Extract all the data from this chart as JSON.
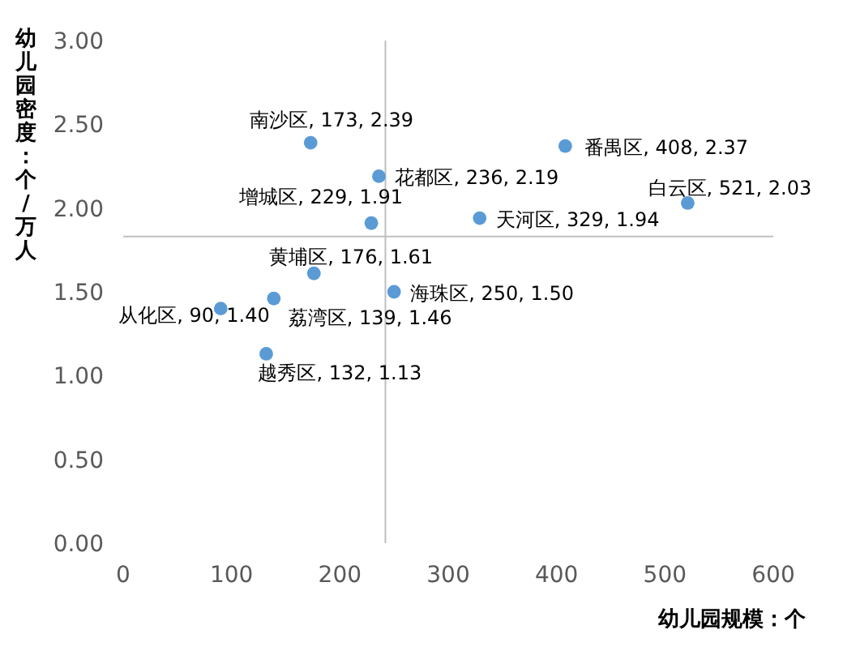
{
  "chart_data": {
    "type": "scatter",
    "xlabel": "幼儿园规模：个",
    "ylabel": "幼儿园密度：个/万人",
    "xlim": [
      0,
      600
    ],
    "xticks": [
      0,
      100,
      200,
      300,
      400,
      500,
      600
    ],
    "ylim": [
      0,
      3
    ],
    "yticks": [
      {
        "value": 0,
        "label": "0.00"
      },
      {
        "value": 0.5,
        "label": "0.50"
      },
      {
        "value": 1,
        "label": "1.00"
      },
      {
        "value": 1.5,
        "label": "1.50"
      },
      {
        "value": 2,
        "label": "2.00"
      },
      {
        "value": 2.5,
        "label": "2.50"
      },
      {
        "value": 3,
        "label": "3.00"
      }
    ],
    "grid": false,
    "marker": "circle",
    "series": [
      {
        "color": "#5b9bd5",
        "x": [
          173,
          408,
          236,
          521,
          229,
          329,
          176,
          250,
          139,
          90,
          132
        ],
        "values": [
          2.39,
          2.37,
          2.19,
          2.03,
          1.91,
          1.94,
          1.61,
          1.5,
          1.46,
          1.4,
          1.13
        ],
        "value_labels": [
          "南沙区, 173, 2.39",
          "番禺区, 408, 2.37",
          "花都区, 236, 2.19",
          "白云区, 521, 2.03",
          "增城区, 229, 1.91",
          "天河区, 329, 1.94",
          "黄埔区, 176, 1.61",
          "海珠区, 250, 1.50",
          "荔湾区, 139, 1.46",
          "从化区, 90, 1.40",
          "越秀区, 132, 1.13"
        ]
      }
    ],
    "ref_lines": [
      {
        "axis": "x",
        "value": 242,
        "color": "#bfbfbf"
      },
      {
        "axis": "y",
        "value": 1.83,
        "color": "#bfbfbf"
      }
    ]
  }
}
